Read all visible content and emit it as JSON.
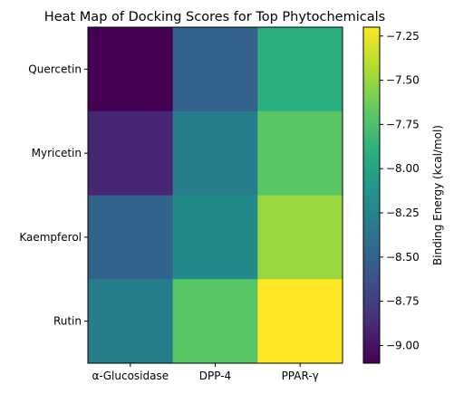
{
  "chart_data": {
    "type": "heatmap",
    "title": "Heat Map of Docking Scores for Top Phytochemicals",
    "rows": [
      "Quercetin",
      "Myricetin",
      "Kaempferol",
      "Rutin"
    ],
    "columns": [
      "α-Glucosidase",
      "DPP-4",
      "PPAR-γ"
    ],
    "values": [
      [
        -9.1,
        -8.5,
        -7.9
      ],
      [
        -8.9,
        -8.3,
        -7.7
      ],
      [
        -8.5,
        -8.2,
        -7.5
      ],
      [
        -8.3,
        -7.7,
        -7.2
      ]
    ],
    "colormap": "viridis",
    "colorbar": {
      "label": "Binding Energy (kcal/mol)",
      "range": [
        -9.1,
        -7.2
      ],
      "ticks": [
        "−7.25",
        "−7.50",
        "−7.75",
        "−8.00",
        "−8.25",
        "−8.50",
        "−8.75",
        "−9.00"
      ],
      "tick_values": [
        -7.25,
        -7.5,
        -7.75,
        -8.0,
        -8.25,
        -8.5,
        -8.75,
        -9.0
      ]
    },
    "grid": false
  }
}
